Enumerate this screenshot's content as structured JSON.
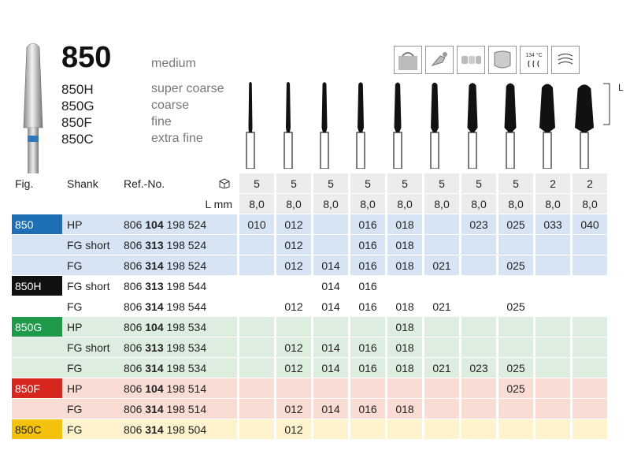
{
  "product": {
    "number": "850",
    "grit": "medium",
    "variants": [
      {
        "code": "850H",
        "desc": "super coarse"
      },
      {
        "code": "850G",
        "desc": "coarse"
      },
      {
        "code": "850F",
        "desc": "fine"
      },
      {
        "code": "850C",
        "desc": "extra fine"
      }
    ]
  },
  "icons": [
    "crown-preparation-icon",
    "dental-tool-icon",
    "bridge-icon",
    "veneer-icon",
    "sterilization-icon",
    "ultrasonic-cleaning-icon"
  ],
  "sterilization_text": "134 °C",
  "length_label": "L",
  "headers": {
    "fig": "Fig.",
    "shank": "Shank",
    "ref": "Ref.-No.",
    "l_mm": "L mm"
  },
  "pack_qty": [
    "5",
    "5",
    "5",
    "5",
    "5",
    "5",
    "5",
    "5",
    "2",
    "2"
  ],
  "lengths": [
    "8,0",
    "8,0",
    "8,0",
    "8,0",
    "8,0",
    "8,0",
    "8,0",
    "8,0",
    "8,0",
    "8,0"
  ],
  "colors": {
    "blue": "#1f6fb5",
    "black": "#111111",
    "green": "#1f9a4a",
    "red": "#d7261e",
    "yellow": "#f4c20d"
  },
  "rows": [
    {
      "fig": "850",
      "color": "blue",
      "shank": "HP",
      "ref_a": "806",
      "ref_b": "104",
      "ref_c": "198 524",
      "sizes": [
        "010",
        "012",
        "",
        "016",
        "018",
        "",
        "023",
        "025",
        "033",
        "040"
      ]
    },
    {
      "fig": "",
      "color": "blue",
      "shank": "FG short",
      "ref_a": "806",
      "ref_b": "313",
      "ref_c": "198 524",
      "sizes": [
        "",
        "012",
        "",
        "016",
        "018",
        "",
        "",
        "",
        "",
        ""
      ]
    },
    {
      "fig": "",
      "color": "blue",
      "shank": "FG",
      "ref_a": "806",
      "ref_b": "314",
      "ref_c": "198 524",
      "sizes": [
        "",
        "012",
        "014",
        "016",
        "018",
        "021",
        "",
        "025",
        "",
        ""
      ]
    },
    {
      "fig": "850H",
      "color": "black",
      "shank": "FG short",
      "ref_a": "806",
      "ref_b": "313",
      "ref_c": "198 544",
      "sizes": [
        "",
        "",
        "014",
        "016",
        "",
        "",
        "",
        "",
        "",
        ""
      ]
    },
    {
      "fig": "",
      "color": "black",
      "shank": "FG",
      "ref_a": "806",
      "ref_b": "314",
      "ref_c": "198 544",
      "sizes": [
        "",
        "012",
        "014",
        "016",
        "018",
        "021",
        "",
        "025",
        "",
        ""
      ]
    },
    {
      "fig": "850G",
      "color": "green",
      "shank": "HP",
      "ref_a": "806",
      "ref_b": "104",
      "ref_c": "198 534",
      "sizes": [
        "",
        "",
        "",
        "",
        "018",
        "",
        "",
        "",
        "",
        ""
      ]
    },
    {
      "fig": "",
      "color": "green",
      "shank": "FG short",
      "ref_a": "806",
      "ref_b": "313",
      "ref_c": "198 534",
      "sizes": [
        "",
        "012",
        "014",
        "016",
        "018",
        "",
        "",
        "",
        "",
        ""
      ]
    },
    {
      "fig": "",
      "color": "green",
      "shank": "FG",
      "ref_a": "806",
      "ref_b": "314",
      "ref_c": "198 534",
      "sizes": [
        "",
        "012",
        "014",
        "016",
        "018",
        "021",
        "023",
        "025",
        "",
        ""
      ]
    },
    {
      "fig": "850F",
      "color": "red",
      "shank": "HP",
      "ref_a": "806",
      "ref_b": "104",
      "ref_c": "198 514",
      "sizes": [
        "",
        "",
        "",
        "",
        "",
        "",
        "",
        "025",
        "",
        ""
      ]
    },
    {
      "fig": "",
      "color": "red",
      "shank": "FG",
      "ref_a": "806",
      "ref_b": "314",
      "ref_c": "198 514",
      "sizes": [
        "",
        "012",
        "014",
        "016",
        "018",
        "",
        "",
        "",
        "",
        ""
      ]
    },
    {
      "fig": "850C",
      "color": "yellow",
      "shank": "FG",
      "ref_a": "806",
      "ref_b": "314",
      "ref_c": "198 504",
      "sizes": [
        "",
        "012",
        "",
        "",
        "",
        "",
        "",
        "",
        "",
        ""
      ]
    }
  ]
}
